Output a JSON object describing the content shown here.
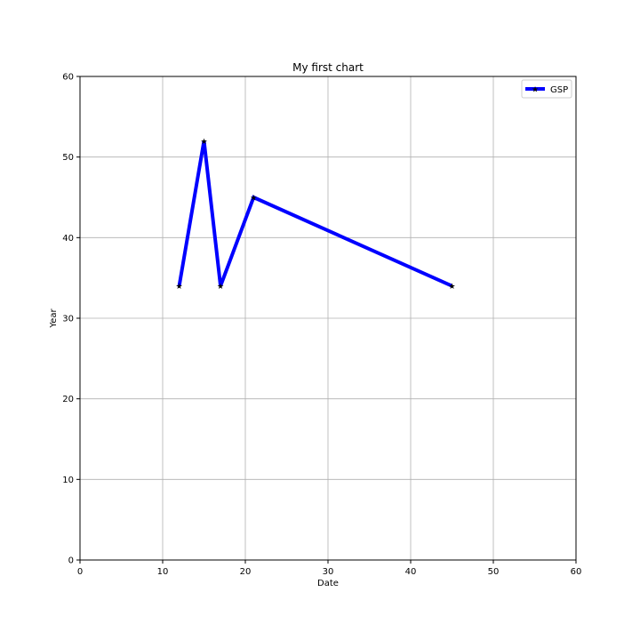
{
  "chart_data": {
    "type": "line",
    "title": "My first chart",
    "xlabel": "Date",
    "ylabel": "Year",
    "xlim": [
      0,
      60
    ],
    "ylim": [
      0,
      60
    ],
    "xticks": [
      "0",
      "10",
      "20",
      "30",
      "40",
      "50",
      "60"
    ],
    "yticks": [
      "0",
      "10",
      "20",
      "30",
      "40",
      "50",
      "60"
    ],
    "grid": true,
    "legend_position": "top-right",
    "series": [
      {
        "name": "GSP",
        "color": "#0000ff",
        "marker": "star",
        "x": [
          12,
          15,
          17,
          21,
          45
        ],
        "y": [
          34,
          52,
          34,
          45,
          34
        ]
      }
    ]
  }
}
